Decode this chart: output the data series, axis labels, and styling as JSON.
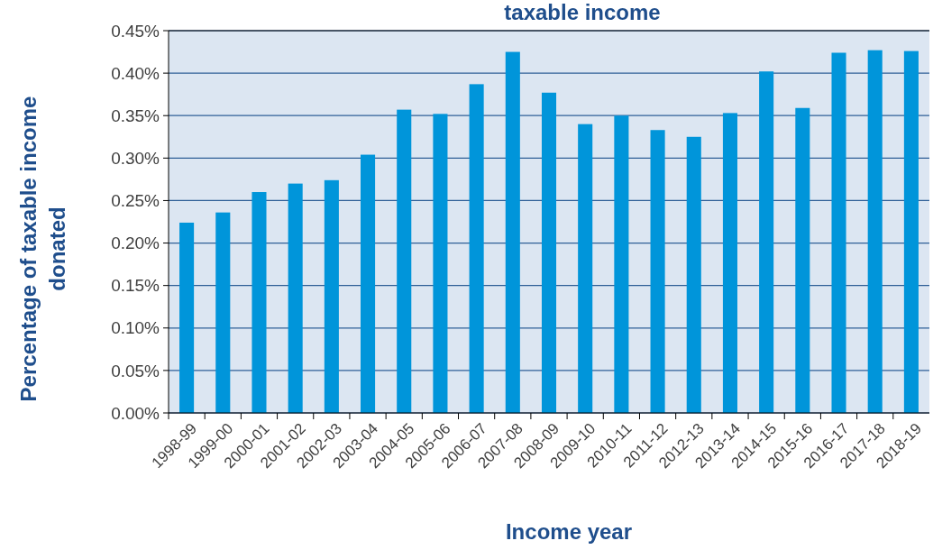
{
  "chart_data": {
    "type": "bar",
    "title": "taxable income",
    "xlabel": "Income year",
    "ylabel": "Percentage of taxable income donated",
    "categories": [
      "1998-99",
      "1999-00",
      "2000-01",
      "2001-02",
      "2002-03",
      "2003-04",
      "2004-05",
      "2005-06",
      "2006-07",
      "2007-08",
      "2008-09",
      "2009-10",
      "2010-11",
      "2011-12",
      "2012-13",
      "2013-14",
      "2014-15",
      "2015-16",
      "2016-17",
      "2017-18",
      "2018-19"
    ],
    "values": [
      0.224,
      0.236,
      0.26,
      0.27,
      0.274,
      0.304,
      0.357,
      0.352,
      0.387,
      0.425,
      0.377,
      0.34,
      0.35,
      0.333,
      0.325,
      0.353,
      0.402,
      0.359,
      0.424,
      0.427,
      0.426
    ],
    "color": "#0095da",
    "ylim": [
      0,
      0.45
    ],
    "yticks": [
      {
        "value": 0,
        "label": "0.00%"
      },
      {
        "value": 0.05,
        "label": "0.05%"
      },
      {
        "value": 0.1,
        "label": "0.10%"
      },
      {
        "value": 0.15,
        "label": "0.15%"
      },
      {
        "value": 0.2,
        "label": "0.20%"
      },
      {
        "value": 0.25,
        "label": "0.25%"
      },
      {
        "value": 0.3,
        "label": "0.30%"
      },
      {
        "value": 0.35,
        "label": "0.35%"
      },
      {
        "value": 0.4,
        "label": "0.40%"
      },
      {
        "value": 0.45,
        "label": "0.45%"
      }
    ],
    "grid": "y"
  }
}
